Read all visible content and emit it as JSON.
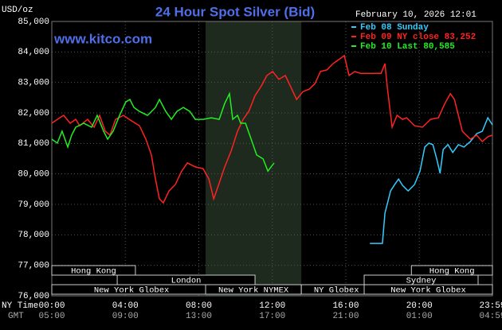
{
  "chart_data": {
    "type": "line",
    "title": "24 Hour Spot Silver (Bid)",
    "subtitle": "February 10, 2026 12:01",
    "watermark": "www.kitco.com",
    "y_label": "USD/oz",
    "x_label": "NY Time",
    "x2_label": "GMT",
    "ylim": [
      76000,
      85000
    ],
    "yticks": [
      {
        "value": 76000,
        "label": "76,000"
      },
      {
        "value": 77000,
        "label": "77,000"
      },
      {
        "value": 78000,
        "label": "78,000"
      },
      {
        "value": 79000,
        "label": "79,000"
      },
      {
        "value": 80000,
        "label": "80,000"
      },
      {
        "value": 81000,
        "label": "81,000"
      },
      {
        "value": 82000,
        "label": "82,000"
      },
      {
        "value": 83000,
        "label": "83,000"
      },
      {
        "value": 84000,
        "label": "84,000"
      },
      {
        "value": 85000,
        "label": "85,000"
      }
    ],
    "xlim": [
      0,
      23.98
    ],
    "xticks": [
      {
        "value": 0,
        "label": "00:00"
      },
      {
        "value": 4,
        "label": "04:00"
      },
      {
        "value": 8,
        "label": "08:00"
      },
      {
        "value": 12,
        "label": "12:00"
      },
      {
        "value": 16,
        "label": "16:00"
      },
      {
        "value": 20,
        "label": "20:00"
      },
      {
        "value": 23.98,
        "label": "23:59"
      }
    ],
    "x2ticks": [
      "05:00",
      "09:00",
      "13:00",
      "17:00",
      "21:00",
      "01:00",
      "04:59"
    ],
    "grid": true,
    "session_rows": [
      [
        {
          "label": "Hong Kong",
          "start": 0,
          "end": 4.55
        },
        {
          "label": "Hong Kong",
          "start": 19.57,
          "end": 23.98
        }
      ],
      [
        {
          "label": "London",
          "start": 3.56,
          "end": 11.06
        },
        {
          "label": "Sydney",
          "start": 17.0,
          "end": 23.2
        }
      ],
      [
        {
          "label": "New York Globex",
          "start": 0,
          "end": 8.68
        },
        {
          "label": "New York NYMEX",
          "start": 8.37,
          "end": 13.58,
          "shade": true
        },
        {
          "label": "NY Globex",
          "start": 13.58,
          "end": 17.4
        },
        {
          "label": "New York Globex",
          "start": 17.0,
          "end": 23.98
        }
      ]
    ],
    "series": [
      {
        "name": "Feb 08 Sunday",
        "color": "#33ccff",
        "x": [
          17.31,
          17.99,
          18.13,
          18.44,
          18.66,
          18.87,
          19.09,
          19.39,
          19.74,
          20.04,
          20.3,
          20.52,
          20.74,
          20.95,
          21.13,
          21.3,
          21.56,
          21.82,
          22.13,
          22.43,
          22.78,
          23.12,
          23.43,
          23.73,
          23.98
        ],
        "values": [
          77720,
          77720,
          78710,
          79440,
          79650,
          79830,
          79620,
          79440,
          79650,
          80090,
          80880,
          81010,
          80960,
          80490,
          80020,
          80800,
          80960,
          80700,
          80960,
          80880,
          81060,
          81320,
          81400,
          81840,
          81610
        ]
      },
      {
        "name": "Feb 09 NY close 83,252",
        "color": "#ff2222",
        "x": [
          0,
          0.43,
          0.65,
          1.0,
          1.3,
          1.52,
          1.95,
          2.3,
          2.6,
          2.91,
          3.17,
          3.47,
          3.9,
          4.34,
          4.77,
          5.12,
          5.42,
          5.64,
          5.86,
          6.07,
          6.38,
          6.72,
          7.07,
          7.38,
          7.81,
          8.24,
          8.55,
          8.81,
          9.11,
          9.41,
          9.76,
          10.11,
          10.41,
          10.72,
          11.06,
          11.41,
          11.71,
          12.02,
          12.36,
          12.71,
          13.02,
          13.32,
          13.67,
          14.01,
          14.32,
          14.62,
          14.97,
          15.31,
          15.62,
          15.92,
          16.18,
          16.49,
          16.79,
          17.35,
          17.92,
          18.13,
          18.26,
          18.52,
          18.79,
          19.09,
          19.31,
          19.74,
          20.17,
          20.61,
          21.04,
          21.39,
          21.69,
          21.91,
          22.13,
          22.34,
          22.78,
          23.12,
          23.43,
          23.73,
          23.98
        ],
        "values": [
          81660,
          81840,
          81920,
          81660,
          81790,
          81580,
          81790,
          81530,
          81920,
          81400,
          81270,
          81790,
          81920,
          81740,
          81580,
          81140,
          80620,
          79830,
          79180,
          79050,
          79440,
          79650,
          80090,
          80360,
          80230,
          80170,
          79830,
          79180,
          79700,
          80230,
          80750,
          81400,
          81790,
          82050,
          82570,
          82890,
          83230,
          83360,
          83100,
          83230,
          82830,
          82440,
          82700,
          82780,
          82960,
          83360,
          83410,
          83620,
          83750,
          83880,
          83230,
          83360,
          83300,
          83300,
          83300,
          83620,
          82830,
          81530,
          81920,
          81790,
          81840,
          81580,
          81530,
          81790,
          81840,
          82310,
          82630,
          82440,
          81920,
          81400,
          81140,
          81270,
          81060,
          81220,
          81270
        ]
      },
      {
        "name": "Feb 10 Last 80,585",
        "color": "#22ee22",
        "x": [
          0,
          0.3,
          0.56,
          0.87,
          1.08,
          1.3,
          1.74,
          2.17,
          2.47,
          2.82,
          3.04,
          3.34,
          3.69,
          4.03,
          4.25,
          4.47,
          4.77,
          5.21,
          5.64,
          5.86,
          6.2,
          6.51,
          6.81,
          7.16,
          7.51,
          7.81,
          8.24,
          8.68,
          9.11,
          9.41,
          9.67,
          9.85,
          10.11,
          10.28,
          10.54,
          10.85,
          11.15,
          11.5,
          11.76,
          11.93,
          12.1
        ],
        "values": [
          81140,
          81010,
          81400,
          80880,
          81270,
          81530,
          81660,
          81530,
          81920,
          81400,
          81140,
          81400,
          81920,
          82360,
          82440,
          82180,
          82050,
          81920,
          82180,
          82440,
          82050,
          81790,
          82050,
          82180,
          82050,
          81790,
          81790,
          81840,
          81790,
          82310,
          82630,
          81790,
          81920,
          81660,
          81660,
          81140,
          80620,
          80490,
          80090,
          80230,
          80360
        ]
      }
    ]
  }
}
